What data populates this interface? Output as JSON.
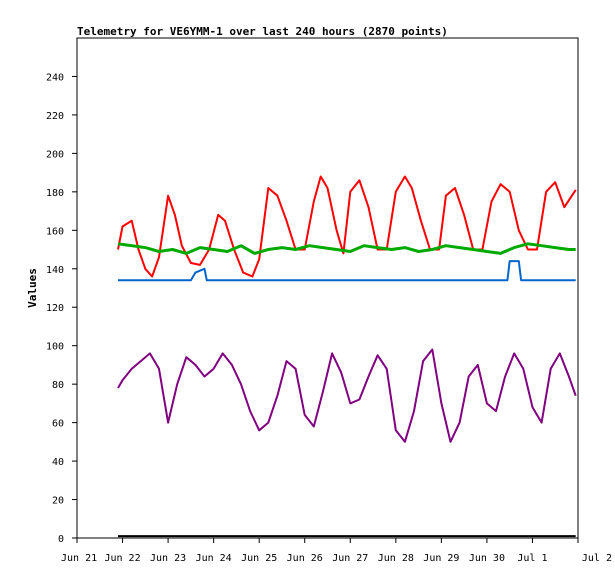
{
  "chart_data": {
    "type": "line",
    "title": "Telemetry for VE6YMM-1 over last 240 hours (2870 points)",
    "xlabel": "",
    "ylabel": "Values",
    "xlim": [
      "Jun 21",
      "Jul 2"
    ],
    "ylim": [
      0,
      260
    ],
    "x_ticks": [
      "Jun 21",
      "Jun 22",
      "Jun 23",
      "Jun 24",
      "Jun 25",
      "Jun 26",
      "Jun 27",
      "Jun 28",
      "Jun 29",
      "Jun 30",
      "Jul 1",
      "Jul 2"
    ],
    "y_ticks": [
      0,
      20,
      40,
      60,
      80,
      100,
      120,
      140,
      160,
      180,
      200,
      220,
      240
    ],
    "grid": false,
    "legend": "none",
    "series": [
      {
        "color": "#ff0000",
        "x": [
          0.9,
          1.0,
          1.2,
          1.35,
          1.5,
          1.65,
          1.8,
          2.0,
          2.15,
          2.3,
          2.5,
          2.7,
          2.9,
          3.1,
          3.25,
          3.45,
          3.65,
          3.85,
          4.0,
          4.2,
          4.4,
          4.6,
          4.8,
          5.0,
          5.2,
          5.35,
          5.5,
          5.7,
          5.85,
          6.0,
          6.2,
          6.4,
          6.6,
          6.8,
          7.0,
          7.2,
          7.35,
          7.55,
          7.75,
          7.95,
          8.1,
          8.3,
          8.5,
          8.7,
          8.9,
          9.1,
          9.3,
          9.5,
          9.7,
          9.9,
          10.1,
          10.3,
          10.5,
          10.7,
          10.95
        ],
        "values": [
          150,
          162,
          165,
          150,
          140,
          136,
          146,
          178,
          168,
          152,
          143,
          142,
          150,
          168,
          165,
          150,
          138,
          136,
          145,
          182,
          178,
          165,
          150,
          150,
          175,
          188,
          182,
          160,
          148,
          180,
          186,
          172,
          150,
          150,
          180,
          188,
          182,
          165,
          150,
          150,
          178,
          182,
          168,
          150,
          150,
          175,
          184,
          180,
          160,
          150,
          150,
          180,
          185,
          172,
          181
        ]
      },
      {
        "color": "#00aa00",
        "x": [
          0.9,
          1.2,
          1.5,
          1.8,
          2.1,
          2.4,
          2.7,
          3.0,
          3.3,
          3.6,
          3.9,
          4.2,
          4.5,
          4.8,
          5.1,
          5.4,
          5.7,
          6.0,
          6.3,
          6.6,
          6.9,
          7.2,
          7.5,
          7.8,
          8.1,
          8.4,
          8.7,
          9.0,
          9.3,
          9.6,
          9.9,
          10.2,
          10.5,
          10.8,
          10.95
        ],
        "values": [
          153,
          152,
          151,
          149,
          150,
          148,
          151,
          150,
          149,
          152,
          148,
          150,
          151,
          150,
          152,
          151,
          150,
          149,
          152,
          151,
          150,
          151,
          149,
          150,
          152,
          151,
          150,
          149,
          148,
          151,
          153,
          152,
          151,
          150,
          150
        ]
      },
      {
        "color": "#0066cc",
        "x": [
          0.9,
          2.5,
          2.6,
          2.8,
          2.85,
          9.45,
          9.5,
          9.7,
          9.75,
          10.95
        ],
        "values": [
          134,
          134,
          138,
          140,
          134,
          134,
          144,
          144,
          134,
          134
        ]
      },
      {
        "color": "#800080",
        "x": [
          0.9,
          1.0,
          1.2,
          1.4,
          1.6,
          1.8,
          2.0,
          2.2,
          2.4,
          2.6,
          2.8,
          3.0,
          3.2,
          3.4,
          3.6,
          3.8,
          4.0,
          4.2,
          4.4,
          4.6,
          4.8,
          5.0,
          5.2,
          5.4,
          5.6,
          5.8,
          6.0,
          6.2,
          6.4,
          6.6,
          6.8,
          7.0,
          7.2,
          7.4,
          7.6,
          7.8,
          8.0,
          8.2,
          8.4,
          8.6,
          8.8,
          9.0,
          9.2,
          9.4,
          9.6,
          9.8,
          10.0,
          10.2,
          10.4,
          10.6,
          10.8,
          10.95
        ],
        "values": [
          78,
          82,
          88,
          92,
          96,
          88,
          60,
          80,
          94,
          90,
          84,
          88,
          96,
          90,
          80,
          66,
          56,
          60,
          74,
          92,
          88,
          64,
          58,
          76,
          96,
          86,
          70,
          72,
          84,
          95,
          88,
          56,
          50,
          66,
          92,
          98,
          70,
          50,
          60,
          84,
          90,
          70,
          66,
          84,
          96,
          88,
          68,
          60,
          88,
          96,
          84,
          74
        ]
      },
      {
        "color": "#000000",
        "x": [
          0.9,
          10.95
        ],
        "values": [
          1,
          1
        ]
      }
    ]
  }
}
